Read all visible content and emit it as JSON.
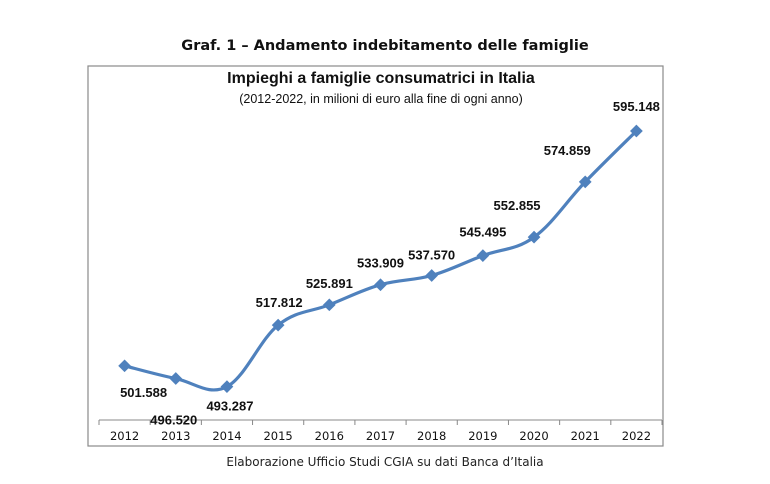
{
  "header": {
    "title": "Graf. 1 – Andamento indebitamento delle famiglie"
  },
  "footer": {
    "source": "Elaborazione Ufficio Studi CGIA su dati Banca d’Italia"
  },
  "colors": {
    "line": "#4F81BD",
    "frame": "#888888",
    "text": "#111111"
  },
  "chart_data": {
    "type": "line",
    "title": "Impieghi a famiglie consumatrici in Italia",
    "subtitle": "(2012-2022, in milioni di euro alla fine di ogni anno)",
    "categories": [
      "2012",
      "2013",
      "2014",
      "2015",
      "2016",
      "2017",
      "2018",
      "2019",
      "2020",
      "2021",
      "2022"
    ],
    "values": [
      501.588,
      496.52,
      493.287,
      517.812,
      525.891,
      533.909,
      537.57,
      545.495,
      552.855,
      574.859,
      595.148
    ],
    "labels": [
      "501.588",
      "496.520",
      "493.287",
      "517.812",
      "525.891",
      "533.909",
      "537.570",
      "545.495",
      "552.855",
      "574.859",
      "595.148"
    ],
    "xlabel": "",
    "ylabel": "",
    "ylim": [
      480,
      607.5
    ],
    "grid": false,
    "legend": "none",
    "marker": "diamond"
  }
}
